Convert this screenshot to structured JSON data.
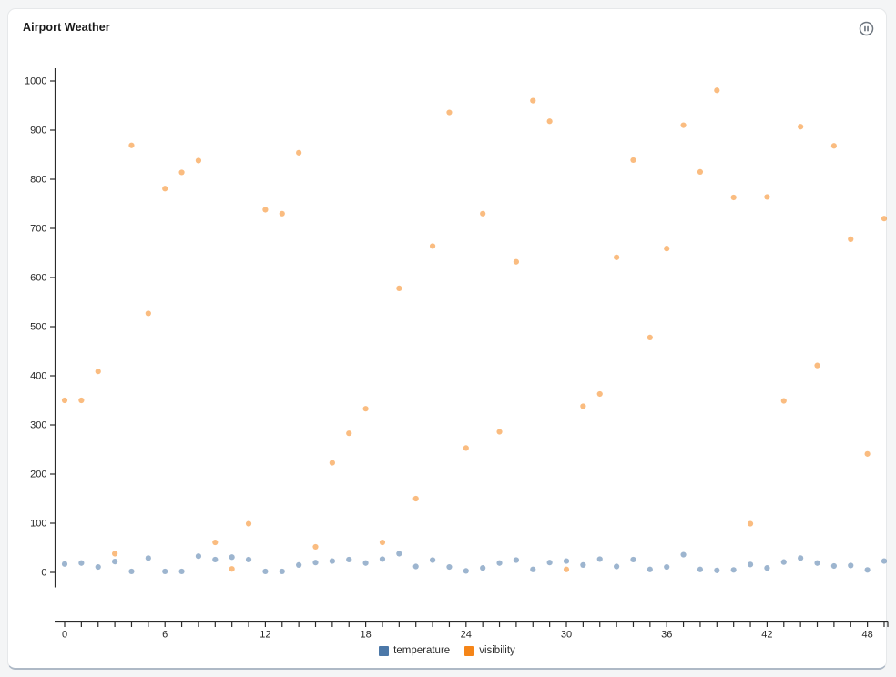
{
  "panel": {
    "title": "Airport Weather",
    "icons": {
      "pause": "circle-pause-icon"
    }
  },
  "chart_data": {
    "type": "scatter",
    "title": "Airport Weather",
    "xlabel": "",
    "ylabel": "",
    "grid": false,
    "legend_position": "bottom",
    "xlim": [
      0,
      49
    ],
    "ylim": [
      0,
      1000
    ],
    "x_tick_labels": [
      0,
      6,
      12,
      18,
      24,
      30,
      36,
      42,
      48
    ],
    "y_ticks": [
      0,
      100,
      200,
      300,
      400,
      500,
      600,
      700,
      800,
      900,
      1000
    ],
    "x": [
      0,
      1,
      2,
      3,
      4,
      5,
      6,
      7,
      8,
      9,
      10,
      11,
      12,
      13,
      14,
      15,
      16,
      17,
      18,
      19,
      20,
      21,
      22,
      23,
      24,
      25,
      26,
      27,
      28,
      29,
      30,
      31,
      32,
      33,
      34,
      35,
      36,
      37,
      38,
      39,
      40,
      41,
      42,
      43,
      44,
      45,
      46,
      47,
      48,
      49
    ],
    "series": [
      {
        "name": "temperature",
        "color": "#4c78a8",
        "values": [
          17,
          19,
          11,
          22,
          2,
          29,
          2,
          2,
          33,
          26,
          31,
          26,
          2,
          2,
          15,
          20,
          23,
          26,
          19,
          27,
          38,
          12,
          25,
          11,
          3,
          9,
          19,
          25,
          6,
          20,
          23,
          15,
          27,
          12,
          26,
          6,
          11,
          36,
          6,
          4,
          5,
          16,
          9,
          21,
          29,
          19,
          13,
          14,
          5,
          23
        ]
      },
      {
        "name": "visibility",
        "color": "#f58518",
        "values": [
          350,
          350,
          409,
          38,
          869,
          527,
          781,
          814,
          838,
          61,
          7,
          99,
          738,
          730,
          854,
          52,
          223,
          283,
          333,
          61,
          578,
          150,
          664,
          936,
          253,
          730,
          286,
          632,
          960,
          918,
          6,
          338,
          363,
          641,
          839,
          478,
          659,
          910,
          815,
          981,
          763,
          99,
          764,
          349,
          907,
          421,
          868,
          678,
          241,
          720
        ]
      }
    ],
    "axis_color": "#2b2b2b",
    "tick_label_color": "#262626"
  }
}
